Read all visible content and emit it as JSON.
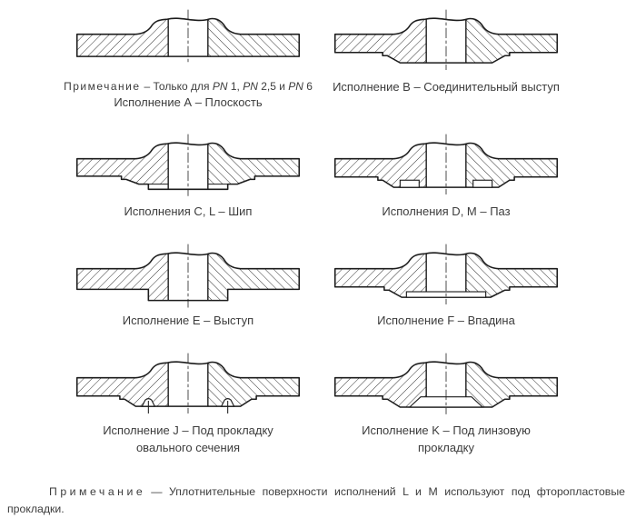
{
  "colors": {
    "ink": "#1c1c1c",
    "text": "#3c3c3c",
    "background": "#ffffff"
  },
  "figures": [
    {
      "type": "flat",
      "note_label": "Примечание",
      "note_text": "– Только для PN 1, PN 2,5 и PN 6",
      "caption": "Исполнение А – Плоскость"
    },
    {
      "type": "raised",
      "caption": "Исполнение В – Соединительный выступ"
    },
    {
      "type": "tongue",
      "caption": "Исполнения C, L – Шип"
    },
    {
      "type": "groove",
      "caption": "Исполнения D, M – Паз"
    },
    {
      "type": "male",
      "caption": "Исполнение Е – Выступ"
    },
    {
      "type": "female",
      "caption": "Исполнение F – Впадина"
    },
    {
      "type": "oval",
      "caption": "Исполнение J – Под прокладку",
      "caption2": "овального сечения"
    },
    {
      "type": "lens",
      "caption": "Исполнение K – Под линзовую",
      "caption2": "прокладку"
    }
  ],
  "footnote": {
    "label": "Примечание",
    "text": "— Уплотнительные поверхности исполнений L и M используют под фторопластовые прокладки."
  }
}
